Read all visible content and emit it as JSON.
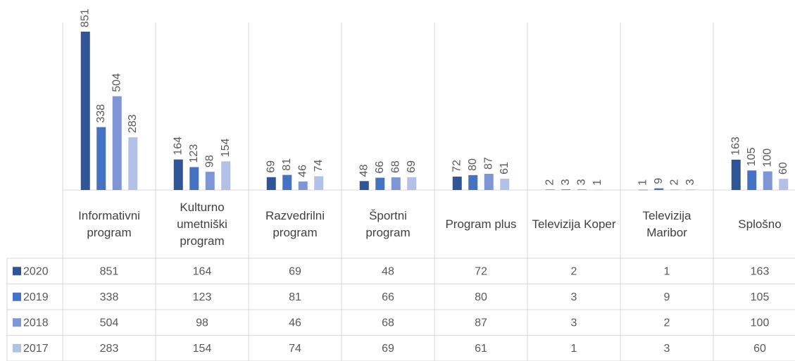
{
  "chart_data": {
    "type": "bar",
    "categories": [
      "Informativni program",
      "Kulturno umetniški program",
      "Razvedrilni program",
      "Športni program",
      "Program plus",
      "Televizija Koper",
      "Televizija Maribor",
      "Splošno"
    ],
    "series": [
      {
        "name": "2020",
        "color": "#2f5597",
        "values": [
          851,
          164,
          69,
          48,
          72,
          2,
          1,
          163
        ]
      },
      {
        "name": "2019",
        "color": "#4472c4",
        "values": [
          338,
          123,
          81,
          66,
          80,
          3,
          9,
          105
        ]
      },
      {
        "name": "2018",
        "color": "#7f96d6",
        "values": [
          504,
          98,
          46,
          68,
          87,
          3,
          2,
          100
        ]
      },
      {
        "name": "2017",
        "color": "#b4c1e6",
        "values": [
          283,
          154,
          74,
          69,
          61,
          1,
          3,
          60
        ]
      }
    ],
    "ylim": [
      0,
      900
    ]
  }
}
